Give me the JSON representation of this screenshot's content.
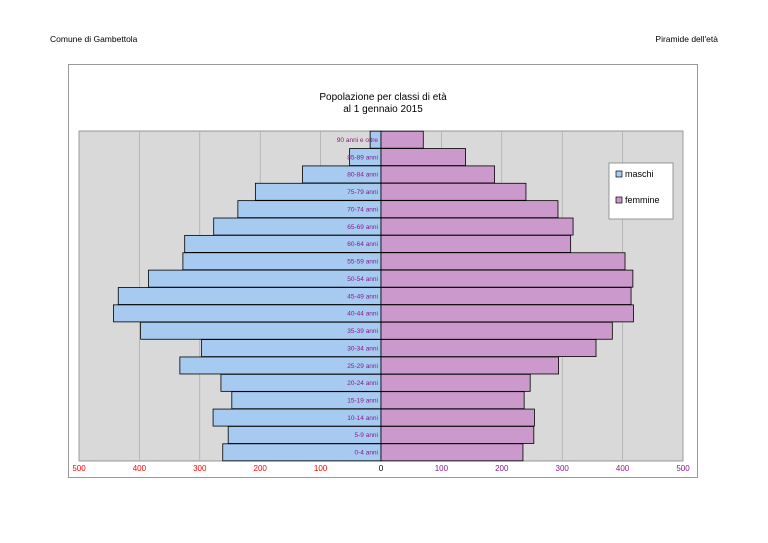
{
  "header": {
    "left": "Comune di Gambettola",
    "right": "Piramide dell'età"
  },
  "chart_data": {
    "type": "bar",
    "orientation": "horizontal-pyramid",
    "title": "Popolazione per classi di età",
    "subtitle": "al 1 gennaio 2015",
    "categories": [
      "0-4 anni",
      "5-9 anni",
      "10-14 anni",
      "15-19 anni",
      "20-24 anni",
      "25-29 anni",
      "30-34 anni",
      "35-39 anni",
      "40-44 anni",
      "45-49 anni",
      "50-54 anni",
      "55-59 anni",
      "60-64 anni",
      "65-69 anni",
      "70-74 anni",
      "75-79 anni",
      "80-84 anni",
      "85-89 anni",
      "90 anni e oltre"
    ],
    "series": [
      {
        "name": "maschi",
        "side": "left",
        "color": "#a6caf0",
        "values": [
          262,
          253,
          278,
          247,
          265,
          333,
          297,
          398,
          443,
          435,
          385,
          328,
          325,
          277,
          237,
          208,
          130,
          52,
          18
        ]
      },
      {
        "name": "femmine",
        "side": "right",
        "color": "#cc99cc",
        "values": [
          235,
          253,
          254,
          237,
          247,
          294,
          356,
          383,
          418,
          414,
          417,
          404,
          314,
          318,
          293,
          240,
          188,
          140,
          70
        ]
      }
    ],
    "xlim": [
      -500,
      500
    ],
    "xticks_left": [
      "500",
      "400",
      "300",
      "200",
      "100"
    ],
    "xtick_zero": "0",
    "xticks_right": [
      "100",
      "200",
      "300",
      "400",
      "500"
    ],
    "grid": true,
    "legend_position": "right",
    "colors": {
      "plot_background": "#d9d9d9",
      "left_tick_color": "#ff0000",
      "right_tick_color": "#8b1a8b",
      "category_label_color": "#8b1a8b"
    }
  }
}
